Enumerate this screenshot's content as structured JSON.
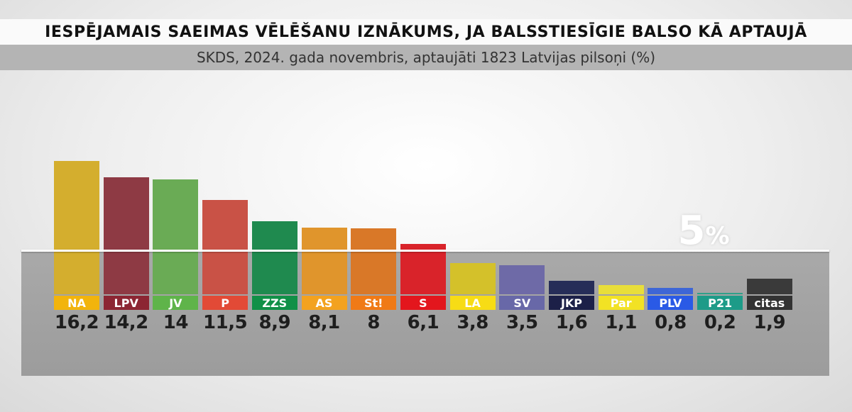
{
  "title": "IESPĒJAMAIS SAEIMAS VĒLĒŠANU IZNĀKUMS, JA BALSSTIESĪGIE BALSO KĀ APTAUJĀ",
  "subtitle": "SKDS, 2024. gada novembris, aptaujāti 1823 Latvijas pilsoņi (%)",
  "chart_data": {
    "type": "bar",
    "title": "IESPĒJAMAIS SAEIMAS VĒLĒŠANU IZNĀKUMS, JA BALSSTIESĪGIE BALSO KĀ APTAUJĀ",
    "subtitle": "SKDS, 2024. gada novembris, aptaujāti 1823 Latvijas pilsoņi (%)",
    "categories": [
      "NA",
      "LPV",
      "JV",
      "P",
      "ZZS",
      "AS",
      "St!",
      "S",
      "LA",
      "SV",
      "JKP",
      "Par",
      "PLV",
      "P21",
      "citas"
    ],
    "values": [
      16.2,
      14.2,
      14,
      11.5,
      8.9,
      8.1,
      8,
      6.1,
      3.8,
      3.5,
      1.6,
      1.1,
      0.8,
      0.2,
      1.9
    ],
    "value_labels": [
      "16,2",
      "14,2",
      "14",
      "11,5",
      "8,9",
      "8,1",
      "8",
      "6,1",
      "3,8",
      "3,5",
      "1,6",
      "1,1",
      "0,8",
      "0,2",
      "1,9"
    ],
    "colors": [
      "#d4ae2e",
      "#8e3a44",
      "#6aab55",
      "#c95246",
      "#1f8a4f",
      "#e0952c",
      "#d97828",
      "#d9232a",
      "#d4c12a",
      "#6e6aa7",
      "#262d58",
      "#e8de3a",
      "#3e66d6",
      "#2fa08a",
      "#3a3a3a"
    ],
    "chip_colors": [
      "#f2b40c",
      "#8c2633",
      "#5fb44a",
      "#e24a36",
      "#109047",
      "#f3a21f",
      "#f07a16",
      "#e3161d",
      "#f7dc15",
      "#6868a8",
      "#1c2048",
      "#f2e224",
      "#2a5ae6",
      "#1d9b88",
      "#333333"
    ],
    "threshold": {
      "value": 5,
      "label": "5",
      "unit": "%"
    },
    "ylim": [
      0,
      17
    ],
    "xlabel": "",
    "ylabel": "",
    "grid": false,
    "legend": "none"
  }
}
